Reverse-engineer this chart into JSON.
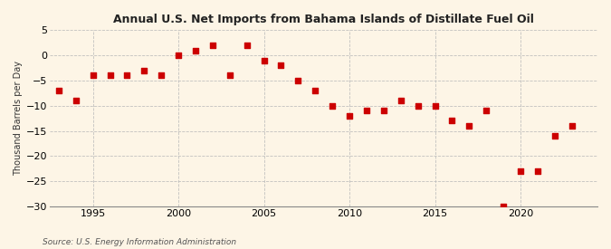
{
  "title": "Annual U.S. Net Imports from Bahama Islands of Distillate Fuel Oil",
  "ylabel": "Thousand Barrels per Day",
  "source": "Source: U.S. Energy Information Administration",
  "years": [
    1993,
    1994,
    1995,
    1996,
    1997,
    1998,
    1999,
    2000,
    2001,
    2002,
    2003,
    2004,
    2005,
    2006,
    2007,
    2008,
    2009,
    2010,
    2011,
    2012,
    2013,
    2014,
    2015,
    2016,
    2017,
    2018,
    2019,
    2020,
    2021,
    2022,
    2023
  ],
  "values": [
    -7,
    -9,
    -4,
    -4,
    -4,
    -3,
    -4,
    0,
    1,
    2,
    -4,
    2,
    -1,
    -2,
    -5,
    -7,
    -10,
    -12,
    -11,
    -11,
    -9,
    -10,
    -10,
    -13,
    -14,
    -11,
    -30,
    -23,
    -23,
    -16,
    -14
  ],
  "marker_color": "#cc0000",
  "marker_size": 14,
  "background_color": "#fdf5e6",
  "grid_color": "#bbbbbb",
  "ylim": [
    -30,
    5
  ],
  "yticks": [
    5,
    0,
    -5,
    -10,
    -15,
    -20,
    -25,
    -30
  ],
  "xlim": [
    1992.5,
    2024.5
  ],
  "xticks": [
    1995,
    2000,
    2005,
    2010,
    2015,
    2020
  ]
}
